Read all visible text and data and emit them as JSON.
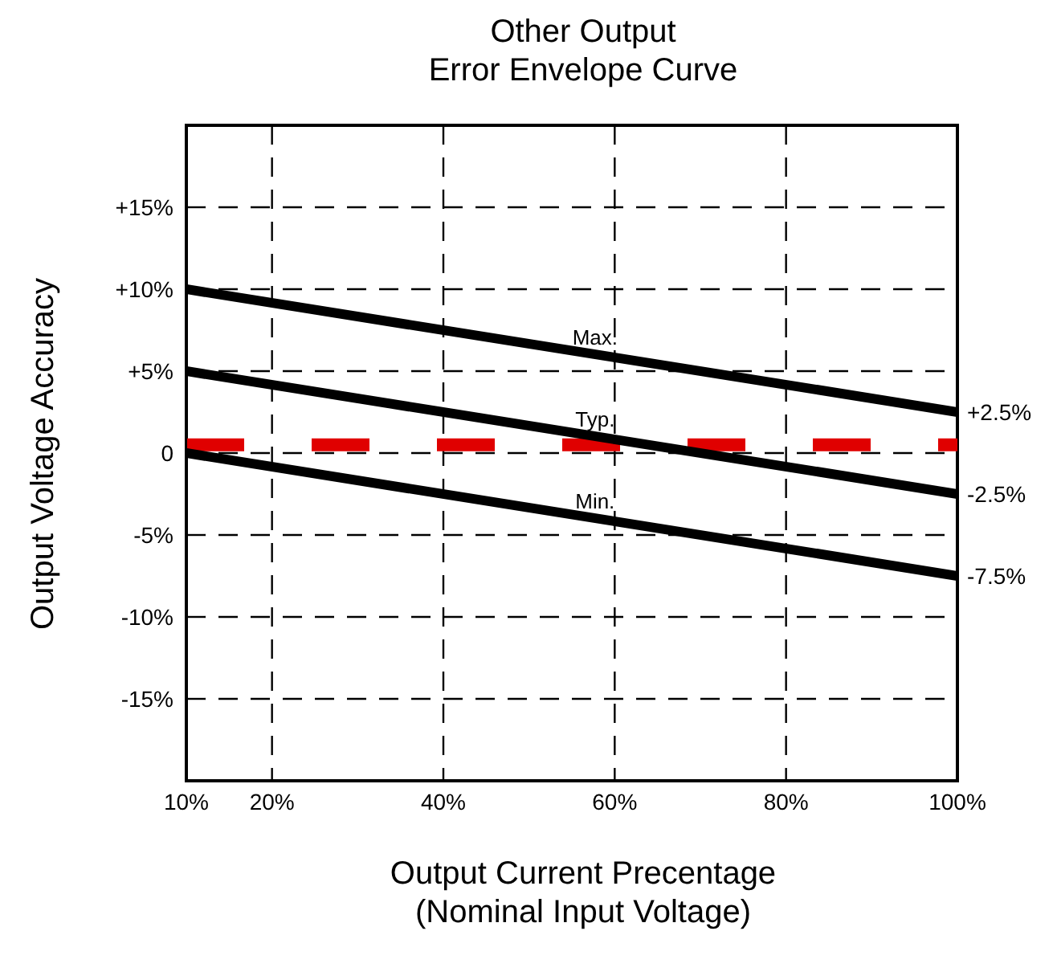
{
  "chart_data": {
    "type": "line",
    "title": "Other Output\nError Envelope Curve",
    "xlabel": "Output Current Precentage\n(Nominal Input Voltage)",
    "ylabel": "Output Voltage Accuracy",
    "xlim": [
      10,
      100
    ],
    "xticks": [
      {
        "value": 10,
        "label": "10%"
      },
      {
        "value": 20,
        "label": "20%"
      },
      {
        "value": 40,
        "label": "40%"
      },
      {
        "value": 60,
        "label": "60%"
      },
      {
        "value": 80,
        "label": "80%"
      },
      {
        "value": 100,
        "label": "100%"
      }
    ],
    "ylim": [
      -20,
      20
    ],
    "yticks": [
      {
        "value": -15,
        "label": "-15%"
      },
      {
        "value": -10,
        "label": "-10%"
      },
      {
        "value": -5,
        "label": "-5%"
      },
      0,
      {
        "value": 5,
        "label": "+5%"
      },
      {
        "value": 10,
        "label": "+10%"
      },
      {
        "value": 15,
        "label": "+15%"
      }
    ],
    "x": [
      10,
      100
    ],
    "series": [
      {
        "name": "Max.",
        "color": "#000000",
        "values": [
          10,
          2.5
        ],
        "value_labels": [
          null,
          "+2.5%"
        ]
      },
      {
        "name": "Typ.",
        "color": "#000000",
        "values": [
          5,
          -2.5
        ],
        "value_labels": [
          null,
          "-2.5%"
        ]
      },
      {
        "name": "Min.",
        "color": "#000000",
        "values": [
          0,
          -7.5
        ],
        "value_labels": [
          null,
          "-7.5%"
        ]
      }
    ],
    "ref_lines": [
      {
        "axis": "y",
        "value": 0.5,
        "color": "#e00000",
        "line_style": "dashed"
      }
    ],
    "grid": true,
    "marker": "none",
    "line_style": "solid"
  }
}
